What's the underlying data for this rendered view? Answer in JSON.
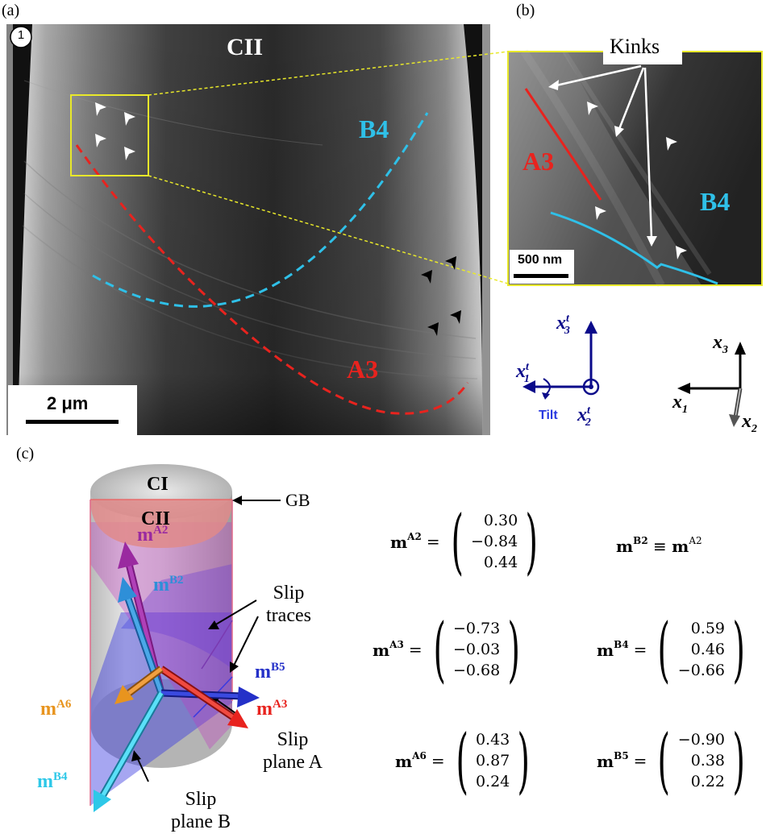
{
  "panels": {
    "a": {
      "label": "(a)",
      "index": "1",
      "grain": "CII",
      "traces": [
        {
          "name": "B4",
          "color": "#2fc0e8"
        },
        {
          "name": "A3",
          "color": "#e8231e"
        }
      ],
      "scalebar": "2 μm"
    },
    "b": {
      "label": "(b)",
      "kinks": "Kinks",
      "trace_a": "A3",
      "trace_b": "B4",
      "scalebar": "500 nm"
    },
    "c": {
      "label": "(c)",
      "grain_top": "CI",
      "grain_bottom": "CII",
      "gb": "GB",
      "slip_traces": [
        "Slip",
        "traces"
      ],
      "slip_plane_a": [
        "Slip",
        "plane A"
      ],
      "slip_plane_b": [
        "Slip",
        "plane B"
      ],
      "vectors": [
        {
          "name": "A2",
          "color": "#9a2aa0"
        },
        {
          "name": "B2",
          "color": "#2e8fd8"
        },
        {
          "name": "B5",
          "color": "#2430c8"
        },
        {
          "name": "A3",
          "color": "#e8231e"
        },
        {
          "name": "A6",
          "color": "#e8941e"
        },
        {
          "name": "B4",
          "color": "#2ec8e8"
        }
      ]
    }
  },
  "axes_tilt": {
    "x1": "x",
    "x1_sup": "t",
    "x1_sub": "1",
    "x2": "x",
    "x2_sup": "t",
    "x2_sub": "2",
    "x3": "x",
    "x3_sup": "t",
    "x3_sub": "3",
    "tilt": "Tilt",
    "color": "#0a0a8a"
  },
  "axes_sample": {
    "x1": "x",
    "x1_sub": "1",
    "x2": "x",
    "x2_sub": "2",
    "x3": "x",
    "x3_sub": "3"
  },
  "vectors": {
    "mA2": {
      "label": "m",
      "sup": "A2",
      "values": [
        "0.30",
        "−0.84",
        "0.44"
      ]
    },
    "mB2_equiv": {
      "label": "m",
      "sup": "B2",
      "eq": "≡",
      "rhs": "m",
      "rhs_sup": "A2"
    },
    "mA3": {
      "label": "m",
      "sup": "A3",
      "values": [
        "−0.73",
        "−0.03",
        "−0.68"
      ]
    },
    "mB4": {
      "label": "m",
      "sup": "B4",
      "values": [
        "0.59",
        "0.46",
        "−0.66"
      ]
    },
    "mA6": {
      "label": "m",
      "sup": "A6",
      "values": [
        "0.43",
        "0.87",
        "0.24"
      ]
    },
    "mB5": {
      "label": "m",
      "sup": "B5",
      "values": [
        "−0.90",
        "0.38",
        "0.22"
      ]
    }
  }
}
